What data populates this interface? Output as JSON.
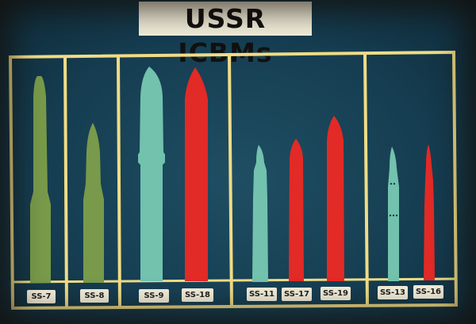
{
  "title": "USSR ICBMs",
  "colors": {
    "background": "#1b4559",
    "frame": "#f0dc86",
    "green": "#789a4a",
    "teal": "#72c2ae",
    "red": "#e22a26",
    "label_bg": "#f4f0dc"
  },
  "missiles": [
    {
      "name": "SS-7",
      "color": "green"
    },
    {
      "name": "SS-8",
      "color": "green"
    },
    {
      "name": "SS-9",
      "color": "teal"
    },
    {
      "name": "SS-18",
      "color": "red"
    },
    {
      "name": "SS-11",
      "color": "teal"
    },
    {
      "name": "SS-17",
      "color": "red"
    },
    {
      "name": "SS-19",
      "color": "red"
    },
    {
      "name": "SS-13",
      "color": "teal"
    },
    {
      "name": "SS-16",
      "color": "red"
    }
  ]
}
